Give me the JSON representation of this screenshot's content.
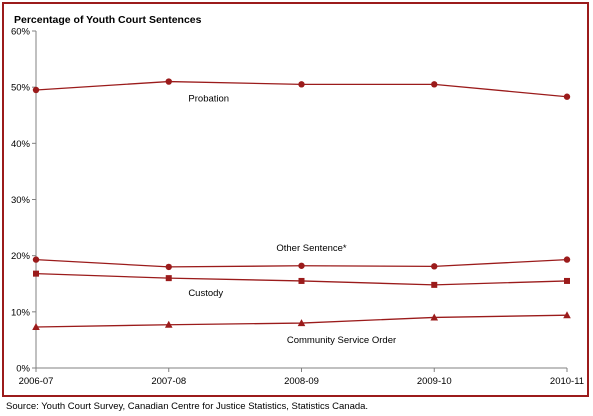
{
  "chart_data": {
    "type": "line",
    "title": "Percentage of Youth Court Sentences",
    "categories": [
      "2006-07",
      "2007-08",
      "2008-09",
      "2009-10",
      "2010-11"
    ],
    "y_ticks": [
      "0%",
      "10%",
      "20%",
      "30%",
      "40%",
      "50%",
      "60%"
    ],
    "ylim": [
      0,
      60
    ],
    "grid": false,
    "legend": "none (series labelled inline)",
    "series": [
      {
        "name": "Probation",
        "marker": "circle",
        "values": [
          49.5,
          51.0,
          50.5,
          50.5,
          48.3
        ]
      },
      {
        "name": "Other Sentence*",
        "marker": "circle",
        "values": [
          19.3,
          18.0,
          18.2,
          18.1,
          19.3
        ]
      },
      {
        "name": "Custody",
        "marker": "square",
        "values": [
          16.8,
          16.0,
          15.5,
          14.8,
          15.5
        ]
      },
      {
        "name": "Community Service Order",
        "marker": "triangle",
        "values": [
          7.3,
          7.7,
          8.0,
          9.0,
          9.4
        ]
      }
    ],
    "colors": {
      "line": "#9b1b1b",
      "frame": "#9b1b1b",
      "axis": "#808080"
    }
  },
  "source": "Source:  Youth Court Survey, Canadian Centre for Justice Statistics, Statistics Canada."
}
